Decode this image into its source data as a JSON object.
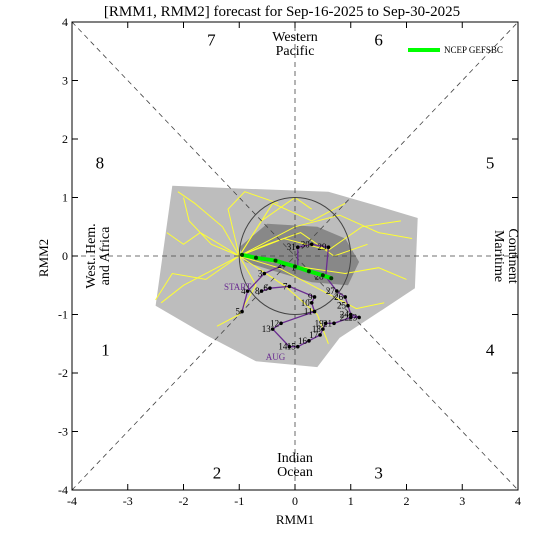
{
  "chart_data": {
    "type": "line",
    "title": "[RMM1, RMM2] forecast for Sep-16-2025 to Sep-30-2025",
    "xlabel": "RMM1",
    "ylabel": "RMM2",
    "xlim": [
      -4,
      4
    ],
    "ylim": [
      -4,
      4
    ],
    "xticks": [
      "-4",
      "-3",
      "-2",
      "-1",
      "0",
      "1",
      "2",
      "3",
      "4"
    ],
    "yticks": [
      "-4",
      "-3",
      "-2",
      "-1",
      "0",
      "1",
      "2",
      "3",
      "4"
    ],
    "phases": [
      {
        "label": "1",
        "x": -3.4,
        "y": -1.6
      },
      {
        "label": "2",
        "x": -1.4,
        "y": -3.7
      },
      {
        "label": "3",
        "x": 1.5,
        "y": -3.7
      },
      {
        "label": "4",
        "x": 3.5,
        "y": -1.6
      },
      {
        "label": "5",
        "x": 3.5,
        "y": 1.6
      },
      {
        "label": "6",
        "x": 1.5,
        "y": 3.7
      },
      {
        "label": "7",
        "x": -1.5,
        "y": 3.7
      },
      {
        "label": "8",
        "x": -3.5,
        "y": 1.6
      }
    ],
    "regions": {
      "top": [
        "Western",
        "Pacific"
      ],
      "bottom": [
        "Indian",
        "Ocean"
      ],
      "left": [
        "West. Hem.",
        "and Africa"
      ],
      "right": [
        "Maritime",
        "Continent"
      ]
    },
    "legend": {
      "entries": [
        {
          "name": "NCEP GEFSBC",
          "color": "#00ff00"
        }
      ],
      "position": "top-right"
    },
    "unit_circle_radius": 1,
    "spread_outer": [
      [
        -2.5,
        -0.85
      ],
      [
        -2.2,
        1.2
      ],
      [
        -0.9,
        1.15
      ],
      [
        0.6,
        1.1
      ],
      [
        1.5,
        0.85
      ],
      [
        2.2,
        0.65
      ],
      [
        2.15,
        -0.55
      ],
      [
        1.6,
        -0.9
      ],
      [
        0.8,
        -1.4
      ],
      [
        0.4,
        -1.9
      ],
      [
        -0.7,
        -1.8
      ],
      [
        -1.6,
        -1.35
      ]
    ],
    "spread_inner": [
      [
        -1.0,
        0.15
      ],
      [
        -0.5,
        0.55
      ],
      [
        0.4,
        0.5
      ],
      [
        0.9,
        0.3
      ],
      [
        1.15,
        -0.1
      ],
      [
        0.95,
        -0.5
      ],
      [
        0.3,
        -0.45
      ],
      [
        -0.4,
        -0.25
      ],
      [
        -0.9,
        -0.1
      ]
    ],
    "ensemble_mean": [
      [
        -0.95,
        0.02
      ],
      [
        -0.7,
        -0.03
      ],
      [
        -0.35,
        -0.08
      ],
      [
        0.0,
        -0.18
      ],
      [
        0.25,
        -0.26
      ],
      [
        0.5,
        -0.33
      ],
      [
        0.65,
        -0.38
      ]
    ],
    "observed": {
      "series_color": "#000000",
      "points": [
        {
          "x": -0.6,
          "y": -0.6,
          "label": "8"
        },
        {
          "x": -0.45,
          "y": -0.55,
          "label": "6"
        },
        {
          "x": -0.1,
          "y": -0.52,
          "label": "7"
        },
        {
          "x": 0.35,
          "y": -0.7,
          "label": "9"
        },
        {
          "x": 0.3,
          "y": -0.8,
          "label": "10"
        },
        {
          "x": 0.35,
          "y": -0.95,
          "label": "11"
        },
        {
          "x": -0.25,
          "y": -1.15,
          "label": "12"
        },
        {
          "x": -0.4,
          "y": -1.25,
          "label": "13"
        },
        {
          "x": -0.1,
          "y": -1.55,
          "label": "14"
        },
        {
          "x": 0.05,
          "y": -1.55,
          "label": "15"
        },
        {
          "x": 0.25,
          "y": -1.45,
          "label": "16"
        },
        {
          "x": 0.45,
          "y": -1.35,
          "label": "17"
        },
        {
          "x": 0.5,
          "y": -1.25,
          "label": "18"
        },
        {
          "x": 0.55,
          "y": -1.15,
          "label": "19"
        },
        {
          "x": 0.7,
          "y": -1.15,
          "label": "21"
        },
        {
          "x": 1.0,
          "y": -1.05,
          "label": "22"
        },
        {
          "x": 1.15,
          "y": -1.05,
          "label": "23"
        },
        {
          "x": 1.0,
          "y": -1.0,
          "label": "24"
        },
        {
          "x": 0.95,
          "y": -0.85,
          "label": "25"
        },
        {
          "x": 0.9,
          "y": -0.7,
          "label": "26"
        },
        {
          "x": 0.75,
          "y": -0.6,
          "label": "27"
        },
        {
          "x": 0.55,
          "y": -0.35,
          "label": "28"
        },
        {
          "x": 0.6,
          "y": 0.15,
          "label": "29"
        },
        {
          "x": 0.3,
          "y": 0.2,
          "label": "30"
        },
        {
          "x": 0.05,
          "y": 0.15,
          "label": "31"
        },
        {
          "x": 0.05,
          "y": -0.2,
          "label": "1"
        },
        {
          "x": -0.2,
          "y": -0.15,
          "label": "2"
        },
        {
          "x": -0.55,
          "y": -0.3,
          "label": "3"
        },
        {
          "x": -0.85,
          "y": -0.6,
          "label": "4"
        },
        {
          "x": -0.95,
          "y": -0.95,
          "label": "5"
        }
      ],
      "start_label": "START",
      "start_point": [
        -0.85,
        -0.72
      ],
      "month_labels": [
        {
          "text": "AUG",
          "x": -0.35,
          "y": -1.78
        }
      ]
    },
    "ensemble_members": [
      [
        [
          -1.0,
          0.0
        ],
        [
          -1.3,
          0.5
        ],
        [
          -1.8,
          0.9
        ],
        [
          -2.1,
          1.1
        ]
      ],
      [
        [
          -1.0,
          0.0
        ],
        [
          -1.4,
          -0.2
        ],
        [
          -2.0,
          -0.5
        ],
        [
          -2.4,
          -0.8
        ]
      ],
      [
        [
          -1.0,
          0.0
        ],
        [
          -0.6,
          0.6
        ],
        [
          0.0,
          1.0
        ],
        [
          0.3,
          0.8
        ]
      ],
      [
        [
          -1.0,
          0.0
        ],
        [
          -0.2,
          0.3
        ],
        [
          0.6,
          0.1
        ],
        [
          1.2,
          0.5
        ],
        [
          1.9,
          0.6
        ]
      ],
      [
        [
          -1.0,
          0.0
        ],
        [
          -0.3,
          -0.2
        ],
        [
          0.5,
          -0.6
        ],
        [
          1.1,
          -0.9
        ],
        [
          1.6,
          -0.8
        ]
      ],
      [
        [
          -1.0,
          0.0
        ],
        [
          -1.5,
          0.2
        ],
        [
          -1.9,
          0.6
        ],
        [
          -2.0,
          1.0
        ]
      ],
      [
        [
          -1.0,
          0.0
        ],
        [
          -0.7,
          -0.5
        ],
        [
          -1.0,
          -1.0
        ],
        [
          -1.4,
          -1.2
        ]
      ],
      [
        [
          -1.0,
          0.0
        ],
        [
          0.0,
          0.5
        ],
        [
          0.8,
          0.7
        ],
        [
          1.5,
          0.4
        ],
        [
          2.1,
          0.3
        ]
      ],
      [
        [
          -1.0,
          0.0
        ],
        [
          -0.4,
          0.9
        ],
        [
          0.3,
          0.6
        ],
        [
          0.9,
          0.9
        ]
      ],
      [
        [
          -1.0,
          0.0
        ],
        [
          -1.6,
          -0.4
        ],
        [
          -2.2,
          -0.3
        ],
        [
          -2.5,
          -0.75
        ]
      ],
      [
        [
          -1.0,
          0.0
        ],
        [
          0.2,
          -0.2
        ],
        [
          0.9,
          -0.3
        ],
        [
          1.5,
          -0.2
        ],
        [
          2.0,
          -0.4
        ]
      ],
      [
        [
          -1.0,
          0.0
        ],
        [
          -0.5,
          0.2
        ],
        [
          0.1,
          0.4
        ],
        [
          0.7,
          0.0
        ],
        [
          1.3,
          0.2
        ]
      ],
      [
        [
          -1.0,
          0.0
        ],
        [
          -1.2,
          0.8
        ],
        [
          -0.9,
          1.1
        ],
        [
          -0.3,
          0.9
        ]
      ],
      [
        [
          -1.0,
          0.0
        ],
        [
          -0.2,
          -0.5
        ],
        [
          0.4,
          -1.0
        ],
        [
          0.6,
          -1.5
        ]
      ],
      [
        [
          -1.0,
          0.0
        ],
        [
          -1.7,
          0.4
        ],
        [
          -2.0,
          0.2
        ],
        [
          -2.3,
          0.4
        ]
      ]
    ]
  }
}
